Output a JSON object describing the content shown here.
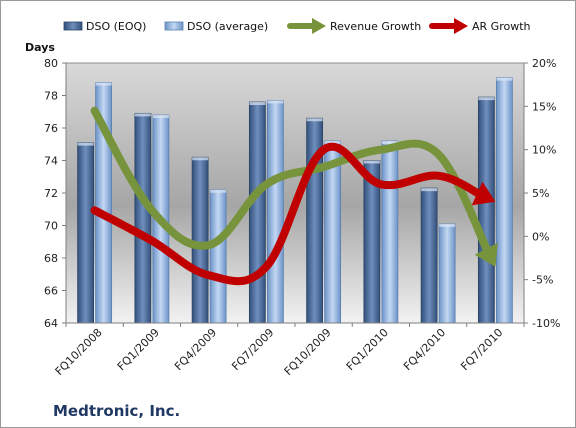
{
  "company": "Medtronic, Inc.",
  "chart_data": {
    "type": "bar",
    "categories": [
      "FQ10/2008",
      "FQ1/2009",
      "FQ4/2009",
      "FQ7/2009",
      "FQ10/2009",
      "FQ1/2010",
      "FQ4/2010",
      "FQ7/2010"
    ],
    "y_left_label": "Days",
    "ylim_left": [
      64,
      80
    ],
    "yticks_left": [
      64,
      66,
      68,
      70,
      72,
      74,
      76,
      78,
      80
    ],
    "ylim_right": [
      -10,
      20
    ],
    "yticks_right": [
      "-10%",
      "-5%",
      "0%",
      "5%",
      "10%",
      "15%",
      "20%"
    ],
    "grid": false,
    "legend_position": "top",
    "series": [
      {
        "name": "DSO (EOQ)",
        "kind": "bar",
        "color": "#4a6994",
        "values": [
          75.1,
          76.9,
          74.2,
          77.6,
          76.6,
          74.0,
          72.3,
          77.9
        ]
      },
      {
        "name": "DSO (average)",
        "kind": "bar",
        "color": "#8fb1de",
        "values": [
          78.8,
          76.8,
          72.2,
          77.7,
          75.2,
          75.2,
          70.1,
          79.1
        ]
      },
      {
        "name": "Revenue Growth",
        "kind": "line",
        "axis": "right",
        "unit": "%",
        "color": "#77933c",
        "values": [
          14.5,
          3.0,
          -1.0,
          6.0,
          8.0,
          10.0,
          9.5,
          -3.5
        ]
      },
      {
        "name": "AR Growth",
        "kind": "line",
        "axis": "right",
        "unit": "%",
        "color": "#c00000",
        "values": [
          3.0,
          -0.5,
          -4.5,
          -3.5,
          10.0,
          6.0,
          7.0,
          4.0
        ]
      }
    ]
  }
}
